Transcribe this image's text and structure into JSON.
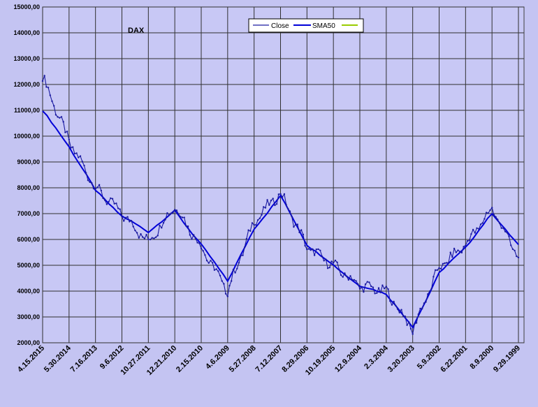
{
  "chart_data": {
    "type": "line",
    "title": "DAX",
    "xlabel": "",
    "ylabel": "",
    "ylim": [
      2000,
      15000
    ],
    "y_ticks": [
      "2000,00",
      "3000,00",
      "4000,00",
      "5000,00",
      "6000,00",
      "7000,00",
      "8000,00",
      "9000,00",
      "10000,00",
      "11000,00",
      "12000,00",
      "13000,00",
      "14000,00",
      "15000,00"
    ],
    "x_ticks": [
      "4.15.2015",
      "5.30.2014",
      "7.16.2013",
      "9.6.2012",
      "10.27.2011",
      "12.21.2010",
      "2.15.2010",
      "4.6.2009",
      "5.27.2008",
      "7.12.2007",
      "8.29.2006",
      "10.19.2005",
      "12.9.2004",
      "2.3.2004",
      "3.20.2003",
      "5.9.2002",
      "6.22.2001",
      "8.9.2000",
      "9.29.1999"
    ],
    "x_order": "reverse-chronological (newest on left)",
    "grid": true,
    "legend_position": "top-center",
    "colors": {
      "plot_background": "#c8c8f5",
      "outer_background": "#c4c4f2",
      "close": "#1a1aa0",
      "sma50": "#0000d8",
      "third_series": "#99cc00"
    },
    "series": [
      {
        "name": "Close",
        "x": [
          "4.15.2015",
          "5.30.2014",
          "7.16.2013",
          "9.6.2012",
          "10.27.2011",
          "12.21.2010",
          "2.15.2010",
          "4.6.2009",
          "5.27.2008",
          "7.12.2007",
          "8.29.2006",
          "10.19.2005",
          "12.9.2004",
          "2.3.2004",
          "3.20.2003",
          "5.9.2002",
          "6.22.2001",
          "8.9.2000",
          "9.29.1999"
        ],
        "values": [
          12300,
          9800,
          8000,
          7000,
          5900,
          7300,
          5700,
          4000,
          6700,
          7800,
          5700,
          5000,
          4200,
          4000,
          2500,
          4900,
          5800,
          7200,
          5300
        ]
      },
      {
        "name": "SMA50",
        "x": [
          "4.15.2015",
          "5.30.2014",
          "7.16.2013",
          "9.6.2012",
          "10.27.2011",
          "12.21.2010",
          "2.15.2010",
          "4.6.2009",
          "5.27.2008",
          "7.12.2007",
          "8.29.2006",
          "10.19.2005",
          "12.9.2004",
          "2.3.2004",
          "3.20.2003",
          "5.9.2002",
          "6.22.2001",
          "8.9.2000",
          "9.29.1999"
        ],
        "values": [
          11000,
          9600,
          7900,
          6900,
          6300,
          7100,
          5800,
          4400,
          6400,
          7700,
          5800,
          5000,
          4200,
          3900,
          2600,
          4700,
          5700,
          7000,
          5800
        ]
      },
      {
        "name": "",
        "values": []
      }
    ]
  }
}
